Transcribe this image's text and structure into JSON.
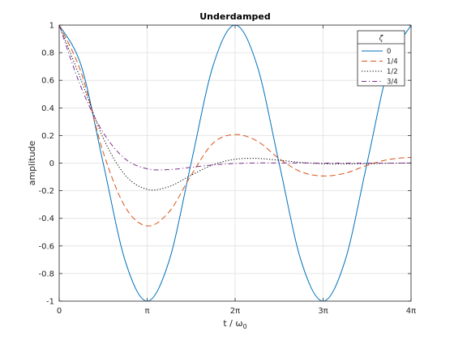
{
  "chart_data": {
    "type": "line",
    "title": "Underdamped",
    "xlabel": "t / ω",
    "xlabel_subscript": "0",
    "ylabel": "amplitude",
    "xlim": [
      0,
      12.566
    ],
    "ylim": [
      -1,
      1
    ],
    "grid": true,
    "x_ticks": [
      {
        "value": 0,
        "label": "0"
      },
      {
        "value": 3.1416,
        "label": "π"
      },
      {
        "value": 6.2832,
        "label": "2π"
      },
      {
        "value": 9.4248,
        "label": "3π"
      },
      {
        "value": 12.566,
        "label": "4π"
      }
    ],
    "y_ticks": [
      {
        "value": 1,
        "label": "1"
      },
      {
        "value": 0.8,
        "label": "0.8"
      },
      {
        "value": 0.6,
        "label": "0.6"
      },
      {
        "value": 0.4,
        "label": "0.4"
      },
      {
        "value": 0.2,
        "label": "0.2"
      },
      {
        "value": 0,
        "label": "0"
      },
      {
        "value": -0.2,
        "label": "-0.2"
      },
      {
        "value": -0.4,
        "label": "-0.4"
      },
      {
        "value": -0.6,
        "label": "-0.6"
      },
      {
        "value": -0.8,
        "label": "-0.8"
      },
      {
        "value": -1,
        "label": "-1"
      }
    ],
    "legend": {
      "title": "ζ",
      "placement": "top-right"
    },
    "series": [
      {
        "name": "0",
        "color": "#0072bd",
        "dash": "solid",
        "x": [
          0,
          0.785,
          1.571,
          2.356,
          3.142,
          3.927,
          4.712,
          5.498,
          6.283,
          7.069,
          7.854,
          8.639,
          9.425,
          10.21,
          10.996,
          11.781,
          12.566
        ],
        "y": [
          1,
          0.707,
          0,
          -0.707,
          -1,
          -0.707,
          0,
          0.707,
          1,
          0.707,
          0,
          -0.707,
          -1,
          -0.707,
          0,
          0.707,
          1
        ]
      },
      {
        "name": "1/4",
        "color": "#d95319",
        "dash": "dashed",
        "x": [
          0,
          0.785,
          1.571,
          2.356,
          3.142,
          3.927,
          4.712,
          5.498,
          6.283,
          7.069,
          7.854,
          8.639,
          9.425,
          10.21,
          10.996,
          11.781,
          12.566
        ],
        "y": [
          1,
          0.657,
          0.08,
          -0.317,
          -0.455,
          -0.353,
          -0.088,
          0.145,
          0.207,
          0.16,
          0.033,
          -0.063,
          -0.093,
          -0.073,
          -0.016,
          0.027,
          0.042
        ]
      },
      {
        "name": "1/2",
        "color": "#000000",
        "dash": "dotted",
        "x": [
          0,
          0.785,
          1.571,
          2.356,
          3.142,
          3.927,
          4.712,
          5.498,
          6.283,
          7.069,
          7.854,
          8.639,
          9.425,
          10.21,
          10.996,
          11.781,
          12.566
        ],
        "y": [
          1,
          0.601,
          0.183,
          -0.087,
          -0.19,
          -0.17,
          -0.088,
          -0.012,
          0.028,
          0.034,
          0.021,
          0.005,
          -0.005,
          -0.006,
          -0.004,
          -0.001,
          0.001
        ]
      },
      {
        "name": "3/4",
        "color": "#7e2f8e",
        "dash": "dashdot",
        "x": [
          0,
          0.785,
          1.571,
          2.356,
          3.142,
          3.927,
          4.712,
          5.498,
          6.283,
          7.069,
          7.854,
          8.639,
          9.425,
          10.21,
          10.996,
          11.781,
          12.566
        ],
        "y": [
          1,
          0.548,
          0.222,
          0.031,
          -0.041,
          -0.047,
          -0.03,
          -0.013,
          -0.003,
          0.001,
          0.001,
          0.001,
          0,
          0,
          0,
          0,
          0
        ]
      }
    ]
  }
}
